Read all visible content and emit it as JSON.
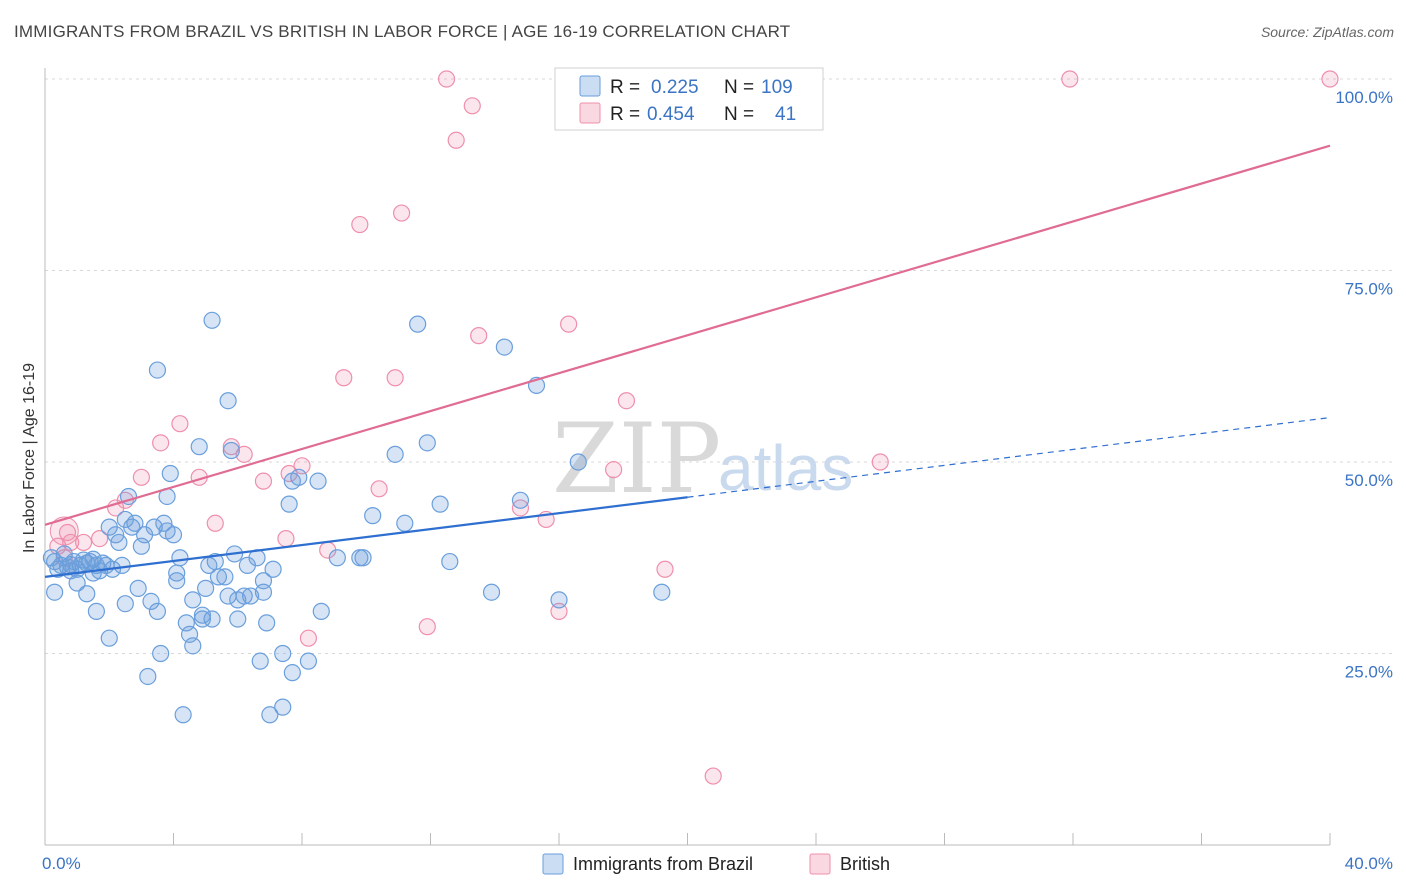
{
  "header": {
    "title": "IMMIGRANTS FROM BRAZIL VS BRITISH IN LABOR FORCE | AGE 16-19 CORRELATION CHART",
    "source": "Source: ZipAtlas.com"
  },
  "watermark": {
    "zip": "ZIP",
    "atlas": "atlas"
  },
  "legend": {
    "rows": [
      {
        "r_label": "R =",
        "r_value": "0.225",
        "n_label": "N =",
        "n_value": "109"
      },
      {
        "r_label": "R =",
        "r_value": "0.454",
        "n_label": "N =",
        "n_value": "41"
      }
    ]
  },
  "colors": {
    "blue": "#6a9fdc",
    "blue_fill": "rgba(106,159,220,0.28)",
    "blue_line": "#2f6fd0",
    "pink": "#ef8fab",
    "pink_fill": "rgba(239,143,171,0.22)",
    "pink_line": "#e06b93",
    "grid": "#d8d8d8",
    "tick_label": "#3b74c4"
  },
  "chart_data": {
    "type": "scatter",
    "title": "IMMIGRANTS FROM BRAZIL VS BRITISH IN LABOR FORCE | AGE 16-19 CORRELATION CHART",
    "xlabel": "",
    "ylabel": "In Labor Force | Age 16-19",
    "xlim": [
      0,
      40
    ],
    "ylim": [
      0,
      100
    ],
    "x_tick_labels": [
      "0.0%",
      "40.0%"
    ],
    "y_ticks": [
      25,
      50,
      75,
      100
    ],
    "y_tick_labels": [
      "25.0%",
      "50.0%",
      "75.0%",
      "100.0%"
    ],
    "grid": true,
    "legend_position": "top-center",
    "series": [
      {
        "name": "Immigrants from Brazil",
        "color": "#6a9fdc",
        "trend": {
          "x0": 0,
          "y0": 35.0,
          "x1": 20,
          "y1": 45.4,
          "dashed_to_x": 40,
          "dashed_to_y": 55.8
        },
        "points": [
          [
            0.2,
            37.5
          ],
          [
            0.3,
            37.0
          ],
          [
            0.3,
            33.0
          ],
          [
            0.4,
            36.0
          ],
          [
            0.5,
            36.5
          ],
          [
            0.6,
            38.0
          ],
          [
            0.7,
            36.3
          ],
          [
            0.8,
            36.6
          ],
          [
            0.9,
            37.0
          ],
          [
            1.0,
            36.0
          ],
          [
            1.0,
            34.2
          ],
          [
            1.1,
            36.5
          ],
          [
            1.2,
            37.2
          ],
          [
            1.3,
            36.8
          ],
          [
            1.3,
            32.8
          ],
          [
            1.4,
            37.0
          ],
          [
            1.5,
            35.5
          ],
          [
            1.6,
            36.5
          ],
          [
            1.6,
            30.5
          ],
          [
            1.7,
            35.8
          ],
          [
            1.8,
            36.8
          ],
          [
            1.9,
            36.5
          ],
          [
            2.0,
            27.0
          ],
          [
            2.0,
            41.5
          ],
          [
            2.1,
            36.0
          ],
          [
            2.2,
            40.5
          ],
          [
            2.3,
            39.5
          ],
          [
            2.4,
            36.5
          ],
          [
            2.5,
            31.5
          ],
          [
            2.5,
            42.5
          ],
          [
            2.6,
            45.5
          ],
          [
            2.7,
            41.5
          ],
          [
            2.8,
            42.0
          ],
          [
            2.9,
            33.5
          ],
          [
            3.0,
            39.0
          ],
          [
            3.1,
            40.5
          ],
          [
            3.2,
            22.0
          ],
          [
            3.3,
            31.8
          ],
          [
            3.4,
            41.5
          ],
          [
            3.5,
            62.0
          ],
          [
            3.5,
            30.5
          ],
          [
            3.6,
            25.0
          ],
          [
            3.7,
            42.0
          ],
          [
            3.8,
            45.5
          ],
          [
            3.8,
            41.0
          ],
          [
            3.9,
            48.5
          ],
          [
            4.0,
            40.5
          ],
          [
            4.1,
            35.5
          ],
          [
            4.1,
            34.5
          ],
          [
            4.2,
            37.5
          ],
          [
            4.3,
            17.0
          ],
          [
            4.4,
            29.0
          ],
          [
            4.5,
            27.5
          ],
          [
            4.6,
            26.0
          ],
          [
            4.6,
            32.0
          ],
          [
            4.8,
            52.0
          ],
          [
            4.9,
            29.5
          ],
          [
            4.9,
            30.0
          ],
          [
            5.0,
            33.5
          ],
          [
            5.1,
            36.5
          ],
          [
            5.2,
            68.5
          ],
          [
            5.2,
            29.5
          ],
          [
            5.3,
            37.0
          ],
          [
            5.4,
            35.0
          ],
          [
            5.6,
            35.0
          ],
          [
            5.7,
            32.5
          ],
          [
            5.7,
            58.0
          ],
          [
            5.8,
            51.5
          ],
          [
            5.9,
            38.0
          ],
          [
            6.0,
            29.5
          ],
          [
            6.0,
            32.0
          ],
          [
            6.2,
            32.5
          ],
          [
            6.3,
            36.5
          ],
          [
            6.4,
            32.5
          ],
          [
            6.6,
            37.5
          ],
          [
            6.7,
            24.0
          ],
          [
            6.8,
            34.5
          ],
          [
            6.8,
            33.0
          ],
          [
            6.9,
            29.0
          ],
          [
            7.0,
            17.0
          ],
          [
            7.1,
            36.0
          ],
          [
            7.4,
            18.0
          ],
          [
            7.4,
            25.0
          ],
          [
            7.6,
            44.5
          ],
          [
            7.7,
            47.5
          ],
          [
            7.7,
            22.5
          ],
          [
            7.9,
            48.0
          ],
          [
            8.2,
            24.0
          ],
          [
            8.5,
            47.5
          ],
          [
            8.6,
            30.5
          ],
          [
            9.1,
            37.5
          ],
          [
            9.9,
            37.5
          ],
          [
            10.2,
            43.0
          ],
          [
            10.9,
            51.0
          ],
          [
            11.2,
            42.0
          ],
          [
            11.6,
            68.0
          ],
          [
            11.9,
            52.5
          ],
          [
            12.3,
            44.5
          ],
          [
            12.6,
            37.0
          ],
          [
            13.9,
            33.0
          ],
          [
            14.3,
            65.0
          ],
          [
            14.8,
            45.0
          ],
          [
            15.3,
            60.0
          ],
          [
            16.0,
            32.0
          ],
          [
            16.6,
            50.0
          ],
          [
            19.2,
            33.0
          ],
          [
            9.8,
            37.5
          ],
          [
            1.5,
            37.3
          ],
          [
            0.8,
            35.8
          ]
        ]
      },
      {
        "name": "British",
        "color": "#ef8fab",
        "trend": {
          "x0": 0,
          "y0": 41.8,
          "x1": 40,
          "y1": 91.3
        },
        "points": [
          [
            0.4,
            39.0
          ],
          [
            0.6,
            37.5
          ],
          [
            0.7,
            40.8
          ],
          [
            0.8,
            39.5
          ],
          [
            1.2,
            39.5
          ],
          [
            1.7,
            40.0
          ],
          [
            2.2,
            44.0
          ],
          [
            2.5,
            45.0
          ],
          [
            3.0,
            48.0
          ],
          [
            3.6,
            52.5
          ],
          [
            4.2,
            55.0
          ],
          [
            4.8,
            48.0
          ],
          [
            5.3,
            42.0
          ],
          [
            5.8,
            52.0
          ],
          [
            6.2,
            51.0
          ],
          [
            6.8,
            47.5
          ],
          [
            7.5,
            40.0
          ],
          [
            7.6,
            48.5
          ],
          [
            8.0,
            49.5
          ],
          [
            8.2,
            27.0
          ],
          [
            8.8,
            38.5
          ],
          [
            9.3,
            61.0
          ],
          [
            9.8,
            81.0
          ],
          [
            10.4,
            46.5
          ],
          [
            10.9,
            61.0
          ],
          [
            11.1,
            82.5
          ],
          [
            11.9,
            28.5
          ],
          [
            12.5,
            100.0
          ],
          [
            12.8,
            92.0
          ],
          [
            13.3,
            96.5
          ],
          [
            13.5,
            66.5
          ],
          [
            14.8,
            44.0
          ],
          [
            15.6,
            42.5
          ],
          [
            16.0,
            30.5
          ],
          [
            16.3,
            68.0
          ],
          [
            17.7,
            49.0
          ],
          [
            18.1,
            58.0
          ],
          [
            19.3,
            36.0
          ],
          [
            20.8,
            9.0
          ],
          [
            26.0,
            50.0
          ],
          [
            31.9,
            100.0
          ]
        ],
        "extra_points": [
          [
            40.0,
            100.0
          ]
        ]
      }
    ]
  }
}
